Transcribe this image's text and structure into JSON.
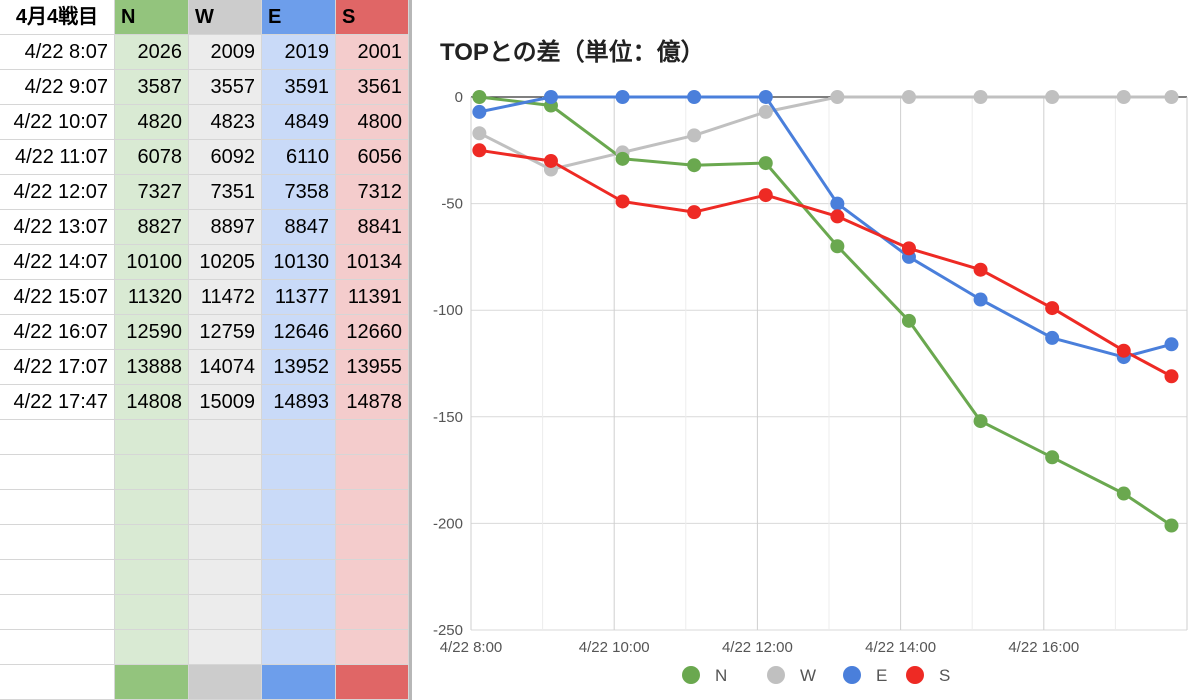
{
  "sheet": {
    "corner": "4月4戦目",
    "headers": [
      "N",
      "W",
      "E",
      "S"
    ],
    "rows": [
      {
        "time": "4/22 8:07",
        "N": "2026",
        "W": "2009",
        "E": "2019",
        "S": "2001"
      },
      {
        "time": "4/22 9:07",
        "N": "3587",
        "W": "3557",
        "E": "3591",
        "S": "3561"
      },
      {
        "time": "4/22 10:07",
        "N": "4820",
        "W": "4823",
        "E": "4849",
        "S": "4800"
      },
      {
        "time": "4/22 11:07",
        "N": "6078",
        "W": "6092",
        "E": "6110",
        "S": "6056"
      },
      {
        "time": "4/22 12:07",
        "N": "7327",
        "W": "7351",
        "E": "7358",
        "S": "7312"
      },
      {
        "time": "4/22 13:07",
        "N": "8827",
        "W": "8897",
        "E": "8847",
        "S": "8841"
      },
      {
        "time": "4/22 14:07",
        "N": "10100",
        "W": "10205",
        "E": "10130",
        "S": "10134"
      },
      {
        "time": "4/22 15:07",
        "N": "11320",
        "W": "11472",
        "E": "11377",
        "S": "11391"
      },
      {
        "time": "4/22 16:07",
        "N": "12590",
        "W": "12759",
        "E": "12646",
        "S": "12660"
      },
      {
        "time": "4/22 17:07",
        "N": "13888",
        "W": "14074",
        "E": "13952",
        "S": "13955"
      },
      {
        "time": "4/22 17:47",
        "N": "14808",
        "W": "15009",
        "E": "14893",
        "S": "14878"
      }
    ]
  },
  "chart_data": {
    "type": "line",
    "title": "TOPとの差（単位：億）",
    "xlabel": "",
    "ylabel": "",
    "x": [
      "4/22 8:07",
      "4/22 9:07",
      "4/22 10:07",
      "4/22 11:07",
      "4/22 12:07",
      "4/22 13:07",
      "4/22 14:07",
      "4/22 15:07",
      "4/22 16:07",
      "4/22 17:07",
      "4/22 17:47"
    ],
    "x_hours": [
      8.1167,
      9.1167,
      10.1167,
      11.1167,
      12.1167,
      13.1167,
      14.1167,
      15.1167,
      16.1167,
      17.1167,
      17.7833
    ],
    "x_ticks": [
      "4/22 8:00",
      "4/22 10:00",
      "4/22 12:00",
      "4/22 14:00",
      "4/22 16:00"
    ],
    "x_tick_hours": [
      8,
      10,
      12,
      14,
      16
    ],
    "xlim_hours": [
      8,
      18
    ],
    "ylim": [
      -250,
      0
    ],
    "yticks": [
      0,
      -50,
      -100,
      -150,
      -200,
      -250
    ],
    "grid": true,
    "legend": "bottom",
    "series": [
      {
        "name": "N",
        "color": "#6aa84f",
        "values": [
          0,
          -4,
          -29,
          -32,
          -31,
          -70,
          -105,
          -152,
          -169,
          -186,
          -201
        ]
      },
      {
        "name": "W",
        "color": "#c0c0c0",
        "values": [
          -17,
          -34,
          -26,
          -18,
          -7,
          0,
          0,
          0,
          0,
          0,
          0
        ]
      },
      {
        "name": "E",
        "color": "#4a7fdb",
        "values": [
          -7,
          0,
          0,
          0,
          0,
          -50,
          -75,
          -95,
          -113,
          -122,
          -116
        ]
      },
      {
        "name": "S",
        "color": "#ee2a24",
        "values": [
          -25,
          -30,
          -49,
          -54,
          -46,
          -56,
          -71,
          -81,
          -99,
          -119,
          -131
        ]
      }
    ]
  }
}
